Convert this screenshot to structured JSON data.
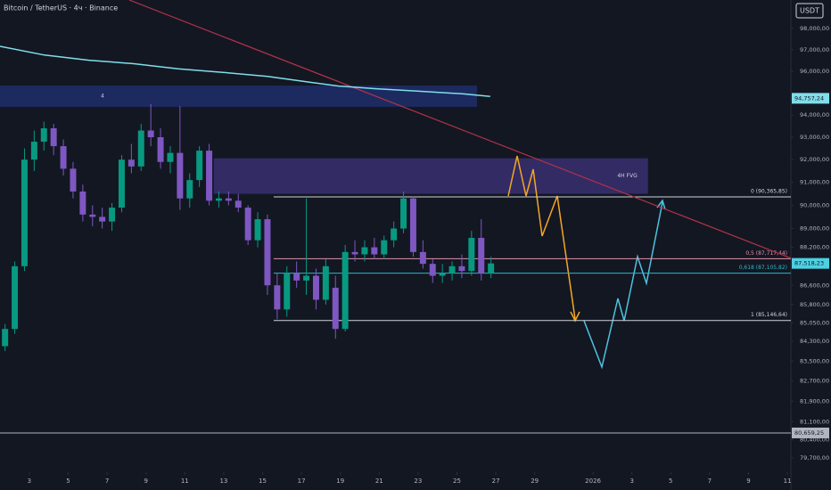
{
  "chart_data": {
    "type": "candlestick",
    "title": "Bitcoin / TetherUS · 4ч · Binance",
    "currency": "USDT",
    "log_scale": true,
    "xlim": [
      0.49,
      41.18
    ],
    "ylim": [
      79150,
      99350
    ],
    "xticks": [
      {
        "value": 2,
        "label": "3"
      },
      {
        "value": 4,
        "label": "5"
      },
      {
        "value": 6,
        "label": "7"
      },
      {
        "value": 8,
        "label": "9"
      },
      {
        "value": 10,
        "label": "11"
      },
      {
        "value": 12,
        "label": "13"
      },
      {
        "value": 14,
        "label": "15"
      },
      {
        "value": 16,
        "label": "17"
      },
      {
        "value": 18,
        "label": "19"
      },
      {
        "value": 20,
        "label": "21"
      },
      {
        "value": 22,
        "label": "23"
      },
      {
        "value": 24,
        "label": "25"
      },
      {
        "value": 26,
        "label": "27"
      },
      {
        "value": 28,
        "label": "29"
      },
      {
        "value": 31,
        "label": "2026"
      },
      {
        "value": 33,
        "label": "3"
      },
      {
        "value": 35,
        "label": "5"
      },
      {
        "value": 37,
        "label": "7"
      },
      {
        "value": 39,
        "label": "9"
      },
      {
        "value": 41,
        "label": "11"
      }
    ],
    "yticks": [
      {
        "value": 98000,
        "label": "98,000,00"
      },
      {
        "value": 97000,
        "label": "97,000,00"
      },
      {
        "value": 96000,
        "label": "96,000,00"
      },
      {
        "value": 94000,
        "label": "94,000,00"
      },
      {
        "value": 93000,
        "label": "93,000,00"
      },
      {
        "value": 92000,
        "label": "92,000,00"
      },
      {
        "value": 91000,
        "label": "91,000,00"
      },
      {
        "value": 90000,
        "label": "90,000,00"
      },
      {
        "value": 89000,
        "label": "89,000,00"
      },
      {
        "value": 88200,
        "label": "88,200,00"
      },
      {
        "value": 86600,
        "label": "86,600,00"
      },
      {
        "value": 85800,
        "label": "85,800,00"
      },
      {
        "value": 85050,
        "label": "85,050,00"
      },
      {
        "value": 84300,
        "label": "84,300,00"
      },
      {
        "value": 83500,
        "label": "83,500,00"
      },
      {
        "value": 82700,
        "label": "82,700,00"
      },
      {
        "value": 81900,
        "label": "81,900,00"
      },
      {
        "value": 81100,
        "label": "81,100,00"
      },
      {
        "value": 80400,
        "label": "80,400,00"
      },
      {
        "value": 79700,
        "label": "79,700,00"
      }
    ],
    "up_color": "#089981",
    "down_color": "#7e57c2",
    "candles": {
      "x": [
        0.75,
        1.25,
        1.75,
        2.25,
        2.75,
        3.25,
        3.75,
        4.25,
        4.75,
        5.25,
        5.75,
        6.25,
        6.75,
        7.25,
        7.75,
        8.25,
        8.75,
        9.25,
        9.75,
        10.25,
        10.75,
        11.25,
        11.75,
        12.25,
        12.75,
        13.25,
        13.75,
        14.25,
        14.75,
        15.25,
        15.75,
        16.25,
        16.75,
        17.25,
        17.75,
        18.25,
        18.75,
        19.25,
        19.75,
        20.25,
        20.75,
        21.25,
        21.75,
        22.25,
        22.75,
        23.25,
        23.75,
        24.25,
        24.75,
        25.25,
        25.75
      ],
      "open": [
        84100,
        84800,
        87400,
        92000,
        92800,
        93400,
        92600,
        91600,
        90600,
        89600,
        89500,
        89300,
        89900,
        92000,
        91700,
        93300,
        93000,
        91900,
        92300,
        90300,
        91100,
        92400,
        90200,
        90300,
        90200,
        89900,
        88500,
        89400,
        86600,
        85600,
        87100,
        86800,
        87000,
        86000,
        86500,
        84800,
        88000,
        87900,
        88200,
        87900,
        88500,
        89000,
        90300,
        88000,
        87500,
        87000,
        87100,
        87400,
        87200,
        88600,
        87100
      ],
      "high": [
        85000,
        87600,
        92500,
        93300,
        93700,
        93600,
        92900,
        91900,
        90900,
        90000,
        89900,
        90100,
        92200,
        92700,
        93600,
        94500,
        93400,
        92600,
        94400,
        91400,
        92600,
        92700,
        90600,
        90600,
        90500,
        90000,
        89700,
        89600,
        87100,
        87400,
        87600,
        90300,
        87300,
        87700,
        87000,
        88300,
        88500,
        88500,
        88600,
        88700,
        89300,
        90600,
        90400,
        88500,
        87700,
        87500,
        87600,
        87900,
        88900,
        89400,
        87800
      ],
      "low": [
        83900,
        84600,
        87200,
        91500,
        92400,
        92200,
        91300,
        90300,
        89300,
        89100,
        89000,
        88900,
        89700,
        91400,
        91500,
        92600,
        91600,
        91400,
        89800,
        89900,
        90800,
        90000,
        89900,
        90000,
        89700,
        88300,
        88200,
        86200,
        85200,
        85300,
        86500,
        86200,
        85600,
        85800,
        84400,
        84700,
        87600,
        87600,
        87700,
        87700,
        88200,
        88800,
        87800,
        87300,
        86700,
        86700,
        86800,
        86900,
        87000,
        86800,
        86900
      ],
      "close": [
        84800,
        87400,
        92000,
        92800,
        93400,
        92600,
        91600,
        90600,
        89600,
        89500,
        89300,
        89900,
        92000,
        91700,
        93300,
        93000,
        91900,
        92300,
        90300,
        91100,
        92400,
        90200,
        90300,
        90200,
        89900,
        88500,
        89400,
        86600,
        85600,
        87100,
        86800,
        87000,
        86000,
        87400,
        84800,
        88000,
        87900,
        88200,
        87900,
        88500,
        89000,
        90300,
        88000,
        87500,
        87000,
        87100,
        87400,
        87200,
        88600,
        87100,
        87518.23
      ]
    },
    "ma": {
      "color": "#80deea",
      "x": [
        0.49,
        2.78,
        5.07,
        7.37,
        9.66,
        11.95,
        14.25,
        16.54,
        17.92,
        19.75,
        22.05,
        24.34,
        25.71
      ],
      "values": [
        97160,
        96750,
        96510,
        96350,
        96110,
        95950,
        95760,
        95480,
        95320,
        95200,
        95080,
        94960,
        94840
      ]
    },
    "trendline": {
      "color": "#b2334a",
      "x": [
        7.14,
        41.18
      ],
      "values": [
        99350,
        87740
      ]
    },
    "zones": [
      {
        "label": "4",
        "x": [
          0.49,
          25.03
        ],
        "top": 95340,
        "bottom": 94370,
        "color": "#1f2e6b"
      },
      {
        "label": "4H FVG",
        "x": [
          11.49,
          33.83
        ],
        "top": 92060,
        "bottom": 90500,
        "color": "#3a2f70"
      }
    ],
    "levels": [
      {
        "value": 90365.85,
        "label": "0 (90,365,85)",
        "color": "#d1d4dc",
        "start": 14.57
      },
      {
        "value": 87717.44,
        "label": "0,5 (87,717,44)",
        "color": "#e091a8",
        "start": 14.57
      },
      {
        "value": 87105.82,
        "label": "0,618 (87,105,82)",
        "color": "#2fb6c8",
        "start": 14.57
      },
      {
        "value": 85146.64,
        "label": "1 (85,146,64)",
        "color": "#d1d4dc",
        "start": 14.57
      },
      {
        "value": 80659.25,
        "color": "#b2b5be",
        "start": 0.49
      }
    ],
    "price_tags": [
      {
        "value": 94757.24,
        "label": "94,757,24",
        "color": "#80deea"
      },
      {
        "value": 87518.23,
        "label": "87,518,23",
        "color": "#4dd0e1"
      },
      {
        "value": 80659.25,
        "label": "80,659,25",
        "color": "#b2b5be"
      }
    ]
  }
}
